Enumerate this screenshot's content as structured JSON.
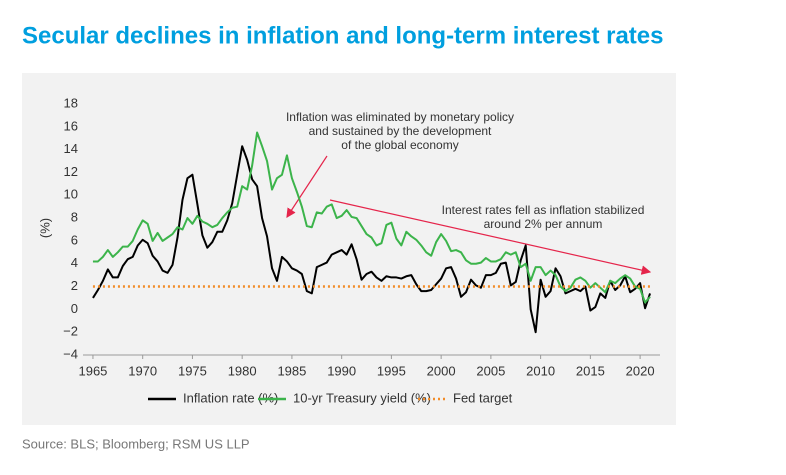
{
  "chart_data": {
    "type": "line",
    "title": "Secular declines in inflation and long-term interest rates",
    "source": "Source: BLS; Bloomberg; RSM US LLP",
    "y_label": "(%)",
    "xlim": [
      1964,
      2022
    ],
    "xticks": [
      1965,
      1970,
      1975,
      1980,
      1985,
      1990,
      1995,
      2000,
      2005,
      2010,
      2015,
      2020
    ],
    "ylim": [
      -4,
      18
    ],
    "yticks": [
      {
        "value": -4,
        "label": "−4"
      },
      {
        "value": -2,
        "label": "−2"
      },
      0,
      2,
      4,
      6,
      8,
      10,
      12,
      14,
      16,
      18
    ],
    "grid": false,
    "x": [
      1965,
      1965.5,
      1966,
      1966.5,
      1967,
      1967.5,
      1968,
      1968.5,
      1969,
      1969.5,
      1970,
      1970.5,
      1971,
      1971.5,
      1972,
      1972.5,
      1973,
      1973.5,
      1974,
      1974.5,
      1975,
      1975.5,
      1976,
      1976.5,
      1977,
      1977.5,
      1978,
      1978.5,
      1979,
      1979.5,
      1980,
      1980.5,
      1981,
      1981.5,
      1982,
      1982.5,
      1983,
      1983.5,
      1984,
      1984.5,
      1985,
      1985.5,
      1986,
      1986.5,
      1987,
      1987.5,
      1988,
      1988.5,
      1989,
      1989.5,
      1990,
      1990.5,
      1991,
      1991.5,
      1992,
      1992.5,
      1993,
      1993.5,
      1994,
      1994.5,
      1995,
      1995.5,
      1996,
      1996.5,
      1997,
      1997.5,
      1998,
      1998.5,
      1999,
      1999.5,
      2000,
      2000.5,
      2001,
      2001.5,
      2002,
      2002.5,
      2003,
      2003.5,
      2004,
      2004.5,
      2005,
      2005.5,
      2006,
      2006.5,
      2007,
      2007.5,
      2008,
      2008.5,
      2009,
      2009.5,
      2010,
      2010.5,
      2011,
      2011.5,
      2012,
      2012.5,
      2013,
      2013.5,
      2014,
      2014.5,
      2015,
      2015.5,
      2016,
      2016.5,
      2017,
      2017.5,
      2018,
      2018.5,
      2019,
      2019.5,
      2020,
      2020.5,
      2021
    ],
    "series": [
      {
        "name": "Inflation rate (%)",
        "color": "#000000",
        "dash": false,
        "values": [
          1.0,
          1.7,
          2.5,
          3.5,
          2.8,
          2.8,
          3.8,
          4.4,
          4.6,
          5.6,
          6.1,
          5.8,
          4.7,
          4.2,
          3.4,
          3.2,
          3.9,
          6.3,
          9.6,
          11.5,
          11.8,
          9.2,
          6.5,
          5.4,
          5.9,
          6.8,
          6.8,
          7.8,
          9.3,
          11.8,
          14.3,
          13.1,
          11.4,
          10.8,
          8.0,
          6.4,
          3.6,
          2.5,
          4.6,
          4.2,
          3.6,
          3.4,
          3.1,
          1.6,
          1.4,
          3.7,
          3.9,
          4.1,
          4.8,
          5.0,
          5.2,
          4.8,
          5.7,
          4.4,
          2.6,
          3.1,
          3.3,
          2.8,
          2.5,
          2.9,
          2.8,
          2.8,
          2.7,
          2.9,
          3.0,
          2.2,
          1.6,
          1.6,
          1.7,
          2.2,
          2.7,
          3.6,
          3.7,
          2.7,
          1.1,
          1.5,
          2.6,
          2.1,
          1.9,
          3.0,
          3.0,
          3.2,
          4.0,
          4.1,
          2.1,
          2.4,
          4.3,
          5.6,
          0.0,
          -2.0,
          2.6,
          1.1,
          1.6,
          3.6,
          2.9,
          1.4,
          1.6,
          1.8,
          1.6,
          2.0,
          -0.1,
          0.2,
          1.4,
          1.0,
          2.5,
          1.7,
          2.1,
          2.9,
          1.5,
          1.8,
          2.3,
          0.1,
          1.4
        ]
      },
      {
        "name": "10-yr Treasury  yield (%)",
        "color": "#3cb44b",
        "dash": false,
        "values": [
          4.2,
          4.2,
          4.6,
          5.2,
          4.6,
          5.0,
          5.5,
          5.5,
          6.0,
          7.0,
          7.8,
          7.5,
          6.0,
          6.7,
          6.0,
          6.3,
          6.6,
          7.2,
          7.0,
          8.0,
          7.5,
          8.2,
          7.7,
          7.5,
          7.2,
          7.4,
          8.0,
          8.5,
          8.9,
          9.0,
          10.8,
          10.5,
          12.6,
          15.5,
          14.3,
          13.0,
          10.5,
          11.5,
          11.8,
          13.5,
          11.5,
          10.3,
          9.0,
          7.3,
          7.2,
          8.5,
          8.4,
          9.0,
          9.2,
          8.0,
          8.2,
          8.7,
          8.1,
          8.0,
          7.3,
          6.6,
          6.3,
          5.6,
          5.8,
          7.4,
          7.6,
          6.2,
          5.6,
          6.8,
          6.4,
          6.1,
          5.6,
          5.0,
          4.7,
          5.9,
          6.6,
          6.0,
          5.1,
          5.2,
          5.0,
          4.3,
          4.0,
          4.0,
          4.1,
          4.5,
          4.2,
          4.2,
          4.4,
          5.0,
          4.8,
          5.0,
          3.7,
          4.0,
          2.5,
          3.7,
          3.7,
          3.0,
          3.4,
          3.0,
          2.0,
          1.6,
          1.9,
          2.6,
          2.8,
          2.5,
          1.9,
          2.3,
          1.9,
          1.5,
          2.5,
          2.3,
          2.7,
          3.0,
          2.7,
          2.0,
          1.8,
          0.6,
          1.1
        ]
      },
      {
        "name": "Fed target",
        "color": "#f28c28",
        "dash": true,
        "x": [
          1965,
          2021
        ],
        "values": [
          2,
          2
        ]
      }
    ],
    "annotations": [
      {
        "lines": [
          "Inflation was eliminated by monetary policy",
          "and sustained by the development",
          "of the global economy"
        ]
      },
      {
        "lines": [
          "Interest rates fell as inflation stabilized",
          "around 2% per annum"
        ]
      }
    ]
  }
}
